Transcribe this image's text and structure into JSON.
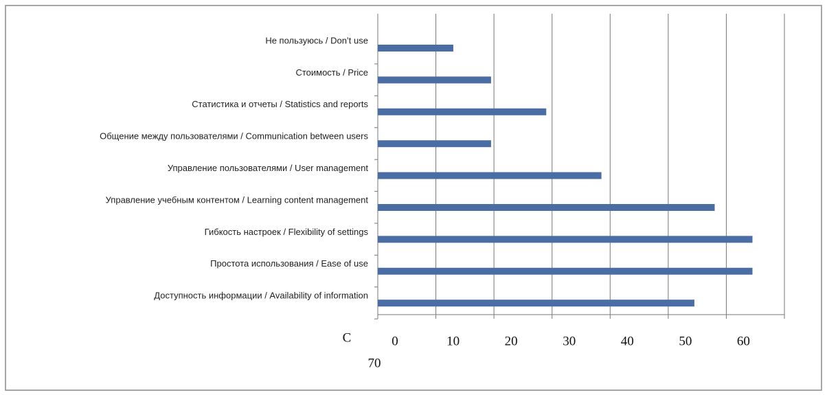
{
  "chart_data": {
    "type": "barh",
    "categories": [
      "Не пользуюсь / Don’t use",
      "Стоимость / Price",
      "Статистика и отчеты / Statistics and reports",
      "Общение между пользователями / Communication between users",
      "Управление пользователями / User management",
      "Управление учебным контентом / Learning content management",
      "Гибкость настроек / Flexibility of settings",
      "Простота использования / Ease of use",
      "Доступность информации / Availability of information"
    ],
    "values": [
      13,
      19.5,
      29,
      19.5,
      38.5,
      58,
      64.5,
      64.5,
      54.5
    ],
    "color": "#4a6ea3",
    "xlim": [
      0,
      70
    ],
    "xticks": [
      0,
      10,
      20,
      30,
      40,
      50,
      60,
      70
    ],
    "grid": true,
    "annotation": "C"
  }
}
